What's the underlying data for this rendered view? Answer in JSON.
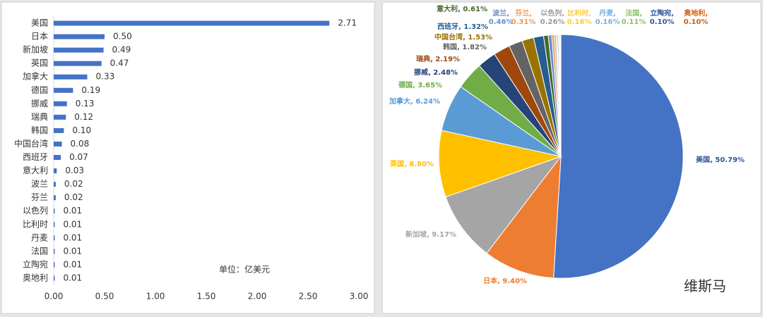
{
  "chart_data": [
    {
      "type": "hbar",
      "categories": [
        "美国",
        "日本",
        "新加坡",
        "英国",
        "加拿大",
        "德国",
        "挪威",
        "瑞典",
        "韩国",
        "中国台湾",
        "西班牙",
        "意大利",
        "波兰",
        "芬兰",
        "以色列",
        "比利时",
        "丹麦",
        "法国",
        "立陶宛",
        "奥地利"
      ],
      "values": [
        2.71,
        0.5,
        0.49,
        0.47,
        0.33,
        0.19,
        0.13,
        0.12,
        0.1,
        0.08,
        0.07,
        0.03,
        0.02,
        0.02,
        0.01,
        0.01,
        0.01,
        0.01,
        0.01,
        0.01
      ],
      "value_labels": [
        "2.71",
        "0.50",
        "0.49",
        "0.47",
        "0.33",
        "0.19",
        "0.13",
        "0.12",
        "0.10",
        "0.08",
        "0.07",
        "0.03",
        "0.02",
        "0.02",
        "0.01",
        "0.01",
        "0.01",
        "0.01",
        "0.01",
        "0.01"
      ],
      "color": "#4472c4",
      "xlim": [
        0,
        3
      ],
      "xticks": [
        {
          "value": 0,
          "label": "0.00"
        },
        {
          "value": 0.5,
          "label": "0.50"
        },
        {
          "value": 1,
          "label": "1.00"
        },
        {
          "value": 1.5,
          "label": "1.50"
        },
        {
          "value": 2,
          "label": "2.00"
        },
        {
          "value": 2.5,
          "label": "2.50"
        },
        {
          "value": 3,
          "label": "3.00"
        }
      ],
      "annotation": "单位：亿美元"
    },
    {
      "type": "pie",
      "values": [
        50.79,
        9.4,
        9.17,
        8.8,
        6.24,
        3.65,
        2.48,
        2.19,
        1.82,
        1.53,
        1.32,
        0.61,
        0.46,
        0.31,
        0.26,
        0.16,
        0.16,
        0.11,
        0.1,
        0.1
      ],
      "value_labels": [
        "美国, 50.79%",
        "日本, 9.40%",
        "新加坡, 9.17%",
        "英国, 8.80%",
        "加拿大, 6.24%",
        "德国, 3.65%",
        "挪威, 2.48%",
        "瑞典, 2.19%",
        "韩国, 1.82%",
        "中国台湾, 1.53%",
        "西班牙, 1.32%",
        "意大利, 0.61%",
        "波兰, 0.46%",
        "芬兰, 0.31%",
        "以色列, 0.26%",
        "比利时, 0.16%",
        "丹麦, 0.16%",
        "法国, 0.11%",
        "立陶宛, 0.10%",
        "奥地利, 0.10%"
      ],
      "colors": [
        "#4472c4",
        "#ed7d31",
        "#a5a5a5",
        "#ffc000",
        "#5b9bd5",
        "#70ad47",
        "#264478",
        "#9e480e",
        "#636363",
        "#997300",
        "#255e91",
        "#43682b",
        "#698ed0",
        "#f1975a",
        "#b7b7b7",
        "#ffcd33",
        "#7cafdd",
        "#8cc168",
        "#335aa1",
        "#d26012"
      ]
    }
  ],
  "logo": "维斯马"
}
